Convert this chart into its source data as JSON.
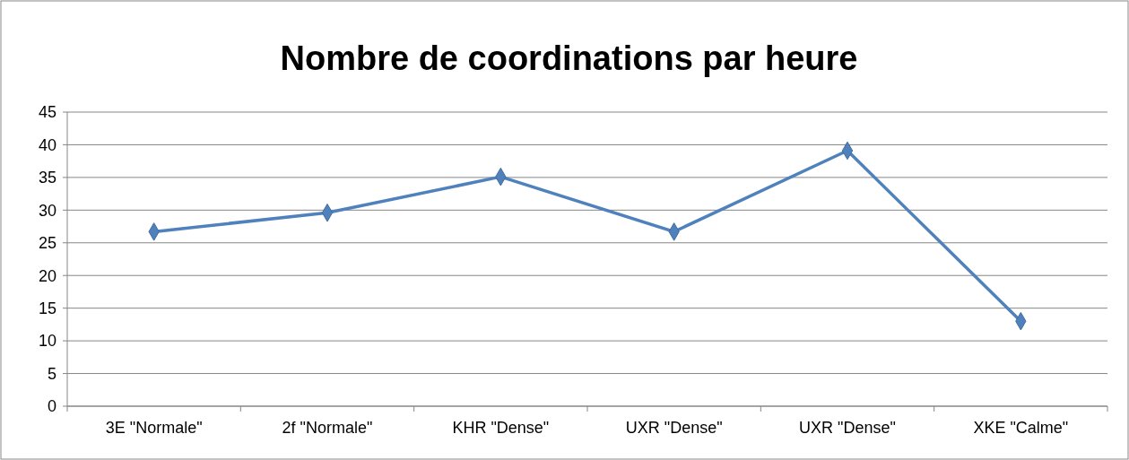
{
  "chart_data": {
    "type": "line",
    "title": "Nombre de coordinations par heure",
    "categories": [
      "3E \"Normale\"",
      "2f \"Normale\"",
      "KHR \"Dense\"",
      "UXR \"Dense\"",
      "UXR \"Dense\"",
      "XKE \"Calme\""
    ],
    "series": [
      {
        "color": "#4f81bd",
        "values": [
          26.7,
          29.6,
          35.1,
          26.7,
          39.1,
          13.0
        ]
      }
    ],
    "ylim": [
      0,
      45
    ],
    "yticks": [
      0,
      5,
      10,
      15,
      20,
      25,
      30,
      35,
      40,
      45
    ],
    "grid": "y",
    "marker": "diamond",
    "line_style": "solid"
  }
}
